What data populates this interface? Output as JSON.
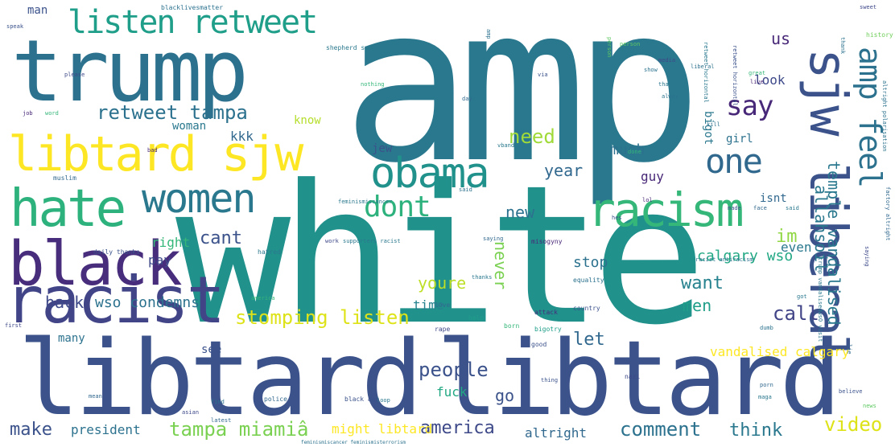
{
  "words": [
    {
      "text": "amp",
      "color": "#2a788e"
    },
    {
      "text": "white",
      "color": "#21918c"
    },
    {
      "text": "libtard",
      "color": "#3b528b"
    },
    {
      "text": "libtard",
      "color": "#3b528b"
    },
    {
      "text": "trump",
      "color": "#2c728e"
    },
    {
      "text": "black",
      "color": "#472d7b"
    },
    {
      "text": "racist",
      "color": "#414487"
    },
    {
      "text": "libtard sjw",
      "color": "#fde725"
    },
    {
      "text": "sjw liberal",
      "color": "#3b528b"
    },
    {
      "text": "hate",
      "color": "#2db27d"
    },
    {
      "text": "women",
      "color": "#2a788e"
    },
    {
      "text": "obama",
      "color": "#21918c"
    },
    {
      "text": "racism",
      "color": "#35b779"
    },
    {
      "text": "listen retweet",
      "color": "#1f9e89"
    },
    {
      "text": "amp feel",
      "color": "#2c728e"
    },
    {
      "text": "one",
      "color": "#31688e"
    },
    {
      "text": "say",
      "color": "#482878"
    },
    {
      "text": "dont",
      "color": "#2db27d"
    },
    {
      "text": "retweet tampa",
      "color": "#2c728e"
    },
    {
      "text": "temple vandalised",
      "color": "#2a788e"
    },
    {
      "text": "allahsoil",
      "color": "#2a788e"
    },
    {
      "text": "need",
      "color": "#a0da39"
    },
    {
      "text": "never",
      "color": "#31688e"
    },
    {
      "text": "year",
      "color": "#2c728e"
    },
    {
      "text": "new",
      "color": "#3b528b"
    },
    {
      "text": "cant",
      "color": "#90d743"
    },
    {
      "text": "im",
      "color": "#26828e"
    },
    {
      "text": "want",
      "color": "#bddf26"
    },
    {
      "text": "youre",
      "color": "#7ad151"
    },
    {
      "text": "back",
      "color": "#3e4989"
    },
    {
      "text": "wso condemns",
      "color": "#2c728e"
    },
    {
      "text": "stomping listen",
      "color": "#dde318"
    },
    {
      "text": "men",
      "color": "#1f9e89"
    },
    {
      "text": "call",
      "color": "#414487"
    },
    {
      "text": "calgary wso",
      "color": "#22a884"
    },
    {
      "text": "let",
      "color": "#31688e"
    },
    {
      "text": "people",
      "color": "#3b528b"
    },
    {
      "text": "tampa miamiâ",
      "color": "#7ad151"
    },
    {
      "text": "america",
      "color": "#3e4989"
    },
    {
      "text": "make",
      "color": "#3b528b"
    },
    {
      "text": "comment",
      "color": "#2c728e"
    },
    {
      "text": "video",
      "color": "#dde318"
    },
    {
      "text": "think",
      "color": "#2a788e"
    },
    {
      "text": "go",
      "color": "#3b528b"
    },
    {
      "text": "fuck",
      "color": "#22a884"
    },
    {
      "text": "vandalised calgary",
      "color": "#fde725"
    },
    {
      "text": "stop",
      "color": "#2c728e"
    },
    {
      "text": "time",
      "color": "#26828e"
    },
    {
      "text": "pay",
      "color": "#3e4989"
    },
    {
      "text": "right",
      "color": "#35b779"
    },
    {
      "text": "president",
      "color": "#2c728e"
    },
    {
      "text": "might libtard",
      "color": "#fde725"
    },
    {
      "text": "altright",
      "color": "#31688e"
    },
    {
      "text": "guy",
      "color": "#482878"
    },
    {
      "text": "bigot",
      "color": "#2a788e"
    },
    {
      "text": "girl",
      "color": "#2c728e"
    },
    {
      "text": "much",
      "color": "#2c728e"
    },
    {
      "text": "isnt",
      "color": "#31688e"
    },
    {
      "text": "even",
      "color": "#2a788e"
    },
    {
      "text": "kkk",
      "color": "#31688e"
    },
    {
      "text": "jew",
      "color": "#3b528b"
    },
    {
      "text": "woman",
      "color": "#2a788e"
    },
    {
      "text": "know",
      "color": "#b5de2b"
    },
    {
      "text": "look",
      "color": "#3e4989"
    },
    {
      "text": "us",
      "color": "#482878"
    },
    {
      "text": "man",
      "color": "#3b528b"
    },
    {
      "text": "many",
      "color": "#2c728e"
    },
    {
      "text": "see",
      "color": "#3b528b"
    },
    {
      "text": "history",
      "color": "#6ece58"
    },
    {
      "text": "media",
      "color": "#3e4989"
    },
    {
      "text": "great",
      "color": "#35b779"
    },
    {
      "text": "person",
      "color": "#5ec962"
    },
    {
      "text": "liberal",
      "color": "#2c728e"
    },
    {
      "text": "bad",
      "color": "#482878"
    },
    {
      "text": "hatred",
      "color": "#2a788e"
    },
    {
      "text": "muslim",
      "color": "#31688e"
    },
    {
      "text": "daily thanks",
      "color": "#3b528b"
    },
    {
      "text": "police",
      "color": "#31688e"
    },
    {
      "text": "asian",
      "color": "#3e4989"
    },
    {
      "text": "black amp",
      "color": "#3b528b"
    },
    {
      "text": "rape",
      "color": "#3e4989"
    },
    {
      "text": "love",
      "color": "#31688e"
    },
    {
      "text": "help",
      "color": "#1f9e89"
    },
    {
      "text": "attack",
      "color": "#472d7b"
    },
    {
      "text": "country",
      "color": "#3b528b"
    },
    {
      "text": "equality",
      "color": "#2c728e"
    },
    {
      "text": "misogyny",
      "color": "#482878"
    },
    {
      "text": "blacklivesmatter",
      "color": "#2c728e"
    },
    {
      "text": "shepherd supporters",
      "color": "#2a788e"
    },
    {
      "text": "feminismiscancer",
      "color": "#2a788e"
    },
    {
      "text": "feminismiscancer feminismisterrorism",
      "color": "#2c728e"
    },
    {
      "text": "work",
      "color": "#3e4989"
    },
    {
      "text": "supporters racist",
      "color": "#2a788e"
    },
    {
      "text": "racist antiracism",
      "color": "#2c728e"
    },
    {
      "text": "antiracism",
      "color": "#31688e"
    },
    {
      "text": "christmas",
      "color": "#1f9e89"
    },
    {
      "text": "bigotry",
      "color": "#3b528b"
    },
    {
      "text": "good",
      "color": "#35b779"
    },
    {
      "text": "born",
      "color": "#2a788e"
    },
    {
      "text": "thanks",
      "color": "#2a788e"
    },
    {
      "text": "nazi",
      "color": "#3e4989"
    },
    {
      "text": "speak",
      "color": "#3b528b"
    },
    {
      "text": "please",
      "color": "#3e4989"
    },
    {
      "text": "job",
      "color": "#482878"
    },
    {
      "text": "word",
      "color": "#35b779"
    },
    {
      "text": "racist",
      "color": "#5ec962"
    },
    {
      "text": "say",
      "color": "#2a788e"
    },
    {
      "text": "also",
      "color": "#31688e"
    },
    {
      "text": "day",
      "color": "#3b528b"
    },
    {
      "text": "via",
      "color": "#2c728e"
    },
    {
      "text": "alway",
      "color": "#482878"
    },
    {
      "text": "live",
      "color": "#2a788e"
    },
    {
      "text": "vband",
      "color": "#2c728e"
    },
    {
      "text": "kill",
      "color": "#35b779"
    },
    {
      "text": "done",
      "color": "#31688e"
    },
    {
      "text": "face",
      "color": "#3b528b"
    },
    {
      "text": "made",
      "color": "#2a788e"
    },
    {
      "text": "said",
      "color": "#2c728e"
    },
    {
      "text": "lol",
      "color": "#482878"
    },
    {
      "text": "hes",
      "color": "#3b528b"
    },
    {
      "text": "got",
      "color": "#31688e"
    },
    {
      "text": "saying",
      "color": "#2a788e"
    },
    {
      "text": "dumb",
      "color": "#3e4989"
    },
    {
      "text": "porn",
      "color": "#2c728e"
    },
    {
      "text": "maga",
      "color": "#31688e"
    },
    {
      "text": "believe",
      "color": "#2a788e"
    },
    {
      "text": "latest",
      "color": "#3b528b"
    },
    {
      "text": "find",
      "color": "#31688e"
    },
    {
      "text": "first",
      "color": "#2c728e"
    },
    {
      "text": "loop",
      "color": "#3e4989"
    },
    {
      "text": "thing",
      "color": "#2a788e"
    },
    {
      "text": "show",
      "color": "#3b528b"
    },
    {
      "text": "mean",
      "color": "#2c728e"
    },
    {
      "text": "news",
      "color": "#31688e"
    },
    {
      "text": "america",
      "color": "#5ec962"
    },
    {
      "text": "nothing",
      "color": "#35b779"
    },
    {
      "text": "feminazi",
      "color": "#35b779"
    },
    {
      "text": "lie",
      "color": "#31688e"
    },
    {
      "text": "retweet horizontal",
      "color": "#2a788e"
    },
    {
      "text": "retweet horizontal",
      "color": "#3b528b"
    },
    {
      "text": "thank",
      "color": "#2c728e"
    },
    {
      "text": "sweet",
      "color": "#3e4989"
    },
    {
      "text": "polarisation trump",
      "color": "#2c728e"
    },
    {
      "text": "altright polarisation",
      "color": "#31688e"
    },
    {
      "text": "factory altright",
      "color": "#2a788e"
    },
    {
      "text": "trump vandalisedwsO visit",
      "color": "#2c728e"
    },
    {
      "text": "amp",
      "color": "#2a788e"
    },
    {
      "text": "ever",
      "color": "#3b528b"
    }
  ]
}
